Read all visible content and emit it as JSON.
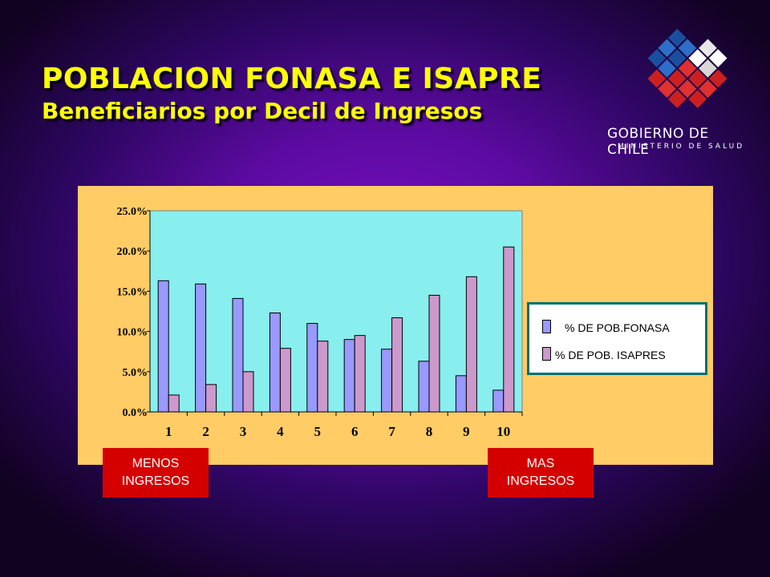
{
  "slide": {
    "title": "POBLACION FONASA E ISAPRE",
    "subtitle": "Beneficiarios por Decil de Ingresos"
  },
  "logo": {
    "name": "GOBIERNO DE CHILE",
    "ministry": "MINISTERIO DE SALUD"
  },
  "badges": {
    "left": {
      "line1": "MENOS",
      "line2": "INGRESOS"
    },
    "right": {
      "line1": "MAS",
      "line2": "INGRESOS"
    }
  },
  "legend": {
    "fonasa": "% DE POB.FONASA",
    "isapres": "% DE POB. ISAPRES"
  },
  "colors": {
    "fonasa": "#9999ff",
    "isapres": "#cc99cc",
    "plot_bg": "#88eeee",
    "panel_bg": "#ffcc66",
    "title": "#ffff00",
    "badge": "#d40000"
  },
  "chart_data": {
    "type": "bar",
    "categories": [
      "1",
      "2",
      "3",
      "4",
      "5",
      "6",
      "7",
      "8",
      "9",
      "10"
    ],
    "series": [
      {
        "name": "% DE POB.FONASA",
        "values": [
          16.3,
          15.9,
          14.1,
          12.3,
          11.0,
          9.0,
          7.8,
          6.3,
          4.5,
          2.7
        ]
      },
      {
        "name": "% DE POB. ISAPRES",
        "values": [
          2.1,
          3.4,
          5.0,
          7.9,
          8.8,
          9.5,
          11.7,
          14.5,
          16.8,
          20.5
        ]
      }
    ],
    "yticks": [
      "0.0%",
      "5.0%",
      "10.0%",
      "15.0%",
      "20.0%",
      "25.0%"
    ],
    "ylim": [
      0,
      25
    ],
    "grid": false,
    "legend_position": "right"
  }
}
